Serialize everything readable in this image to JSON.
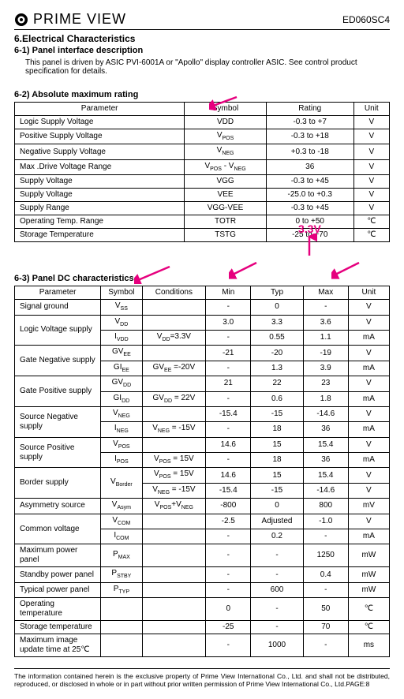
{
  "header": {
    "brand": "PRIME VIEW",
    "partNumber": "ED060SC4"
  },
  "section": {
    "title": "6.Electrical Characteristics",
    "sub1": "6-1) Panel interface description",
    "desc": "This panel is driven by ASIC PVI-6001A or \"Apollo\" display controller ASIC. See control product specification for details.",
    "sub2": "6-2) Absolute maximum rating",
    "sub3": "6-3) Panel DC characteristics"
  },
  "annotations": {
    "callout": "3.3V",
    "calloutColor": "#e6007e"
  },
  "table1": {
    "headers": [
      "Parameter",
      "Symbol",
      "Rating",
      "Unit"
    ],
    "rows": [
      [
        "Logic Supply Voltage",
        "VDD",
        "-0.3 to +7",
        "V"
      ],
      [
        "Positive Supply Voltage",
        "V<sub>POS</sub>",
        "-0.3 to +18",
        "V"
      ],
      [
        "Negative Supply Voltage",
        "V<sub>NEG</sub>",
        "+0.3 to -18",
        "V"
      ],
      [
        "Max .Drive Voltage Range",
        "V<sub>POS</sub> - V<sub>NEG</sub>",
        "36",
        "V"
      ],
      [
        "Supply Voltage",
        "VGG",
        "-0.3 to +45",
        "V"
      ],
      [
        "Supply Voltage",
        "VEE",
        "-25.0 to +0.3",
        "V"
      ],
      [
        "Supply Range",
        "VGG-VEE",
        "-0.3 to +45",
        "V"
      ],
      [
        "Operating Temp. Range",
        "TOTR",
        "0 to +50",
        "℃"
      ],
      [
        "Storage Temperature",
        "TSTG",
        "-25 to +70",
        "℃"
      ]
    ]
  },
  "table2": {
    "headers": [
      "Parameter",
      "Symbol",
      "Conditions",
      "Min",
      "Typ",
      "Max",
      "Unit"
    ],
    "rows": [
      {
        "p": "Signal ground",
        "rs": 1,
        "cells": [
          [
            "V<sub>SS</sub>",
            "",
            "-",
            "0",
            "-",
            "V"
          ]
        ]
      },
      {
        "p": "Logic Voltage supply",
        "rs": 2,
        "cells": [
          [
            "V<sub>DD</sub>",
            "",
            "3.0",
            "3.3",
            "3.6",
            "V"
          ],
          [
            "I<sub>VDD</sub>",
            "V<sub>DD</sub>=3.3V",
            "-",
            "0.55",
            "1.1",
            "mA"
          ]
        ]
      },
      {
        "p": "Gate Negative supply",
        "rs": 2,
        "cells": [
          [
            "GV<sub>EE</sub>",
            "",
            "-21",
            "-20",
            "-19",
            "V"
          ],
          [
            "GI<sub>EE</sub>",
            "GV<sub>EE</sub> =-20V",
            "-",
            "1.3",
            "3.9",
            "mA"
          ]
        ]
      },
      {
        "p": "Gate Positive supply",
        "rs": 2,
        "cells": [
          [
            "GV<sub>DD</sub>",
            "",
            "21",
            "22",
            "23",
            "V"
          ],
          [
            "GI<sub>DD</sub>",
            "GV<sub>DD</sub> = 22V",
            "-",
            "0.6",
            "1.8",
            "mA"
          ]
        ]
      },
      {
        "p": "Source Negative supply",
        "rs": 2,
        "cells": [
          [
            "V<sub>NEG</sub>",
            "",
            "-15.4",
            "-15",
            "-14.6",
            "V"
          ],
          [
            "I<sub>NEG</sub>",
            "V<sub>NEG</sub> = -15V",
            "-",
            "18",
            "36",
            "mA"
          ]
        ]
      },
      {
        "p": "Source Positive supply",
        "rs": 2,
        "cells": [
          [
            "V<sub>POS</sub>",
            "",
            "14.6",
            "15",
            "15.4",
            "V"
          ],
          [
            "I<sub>POS</sub>",
            "V<sub>POS</sub> = 15V",
            "-",
            "18",
            "36",
            "mA"
          ]
        ]
      },
      {
        "p": "Border supply",
        "rs": 2,
        "cells": [
          [
            "V<sub>Border</sub>",
            "V<sub>POS</sub> = 15V",
            "14.6",
            "15",
            "15.4",
            "V"
          ],
          [
            "",
            "V<sub>NEG</sub> = -15V",
            "-15.4",
            "-15",
            "-14.6",
            "V"
          ]
        ]
      },
      {
        "p": "Asymmetry source",
        "rs": 1,
        "cells": [
          [
            "V<sub>Asym</sub>",
            "V<sub>POS</sub>+V<sub>NEG</sub>",
            "-800",
            "0",
            "800",
            "mV"
          ]
        ]
      },
      {
        "p": "Common voltage",
        "rs": 2,
        "cells": [
          [
            "V<sub>COM</sub>",
            "",
            "-2.5",
            "Adjusted",
            "-1.0",
            "V"
          ],
          [
            "I<sub>COM</sub>",
            "",
            "-",
            "0.2",
            "-",
            "mA"
          ]
        ]
      },
      {
        "p": "Maximum power panel",
        "rs": 1,
        "cells": [
          [
            "P<sub>MAX</sub>",
            "",
            "-",
            "-",
            "1250",
            "mW"
          ]
        ]
      },
      {
        "p": "Standby power panel",
        "rs": 1,
        "cells": [
          [
            "P<sub>STBY</sub>",
            "",
            "-",
            "-",
            "0.4",
            "mW"
          ]
        ]
      },
      {
        "p": "Typical power panel",
        "rs": 1,
        "cells": [
          [
            "P<sub>TYP</sub>",
            "",
            "-",
            "600",
            "-",
            "mW"
          ]
        ]
      },
      {
        "p": "Operating temperature",
        "rs": 1,
        "cells": [
          [
            "",
            "",
            "0",
            "-",
            "50",
            "℃"
          ]
        ]
      },
      {
        "p": "Storage temperature",
        "rs": 1,
        "cells": [
          [
            "",
            "",
            "-25",
            "-",
            "70",
            "℃"
          ]
        ]
      },
      {
        "p": "Maximum image update time at 25℃",
        "rs": 1,
        "cells": [
          [
            "",
            "",
            "-",
            "1000",
            "-",
            "ms"
          ]
        ]
      }
    ]
  },
  "footer": {
    "text": "The information contained herein is the exclusive property of Prime View International Co., Ltd. and shall not be distributed, reproduced, or disclosed in whole or in part without prior written permission of Prime View International Co., Ltd.PAGE:8"
  }
}
